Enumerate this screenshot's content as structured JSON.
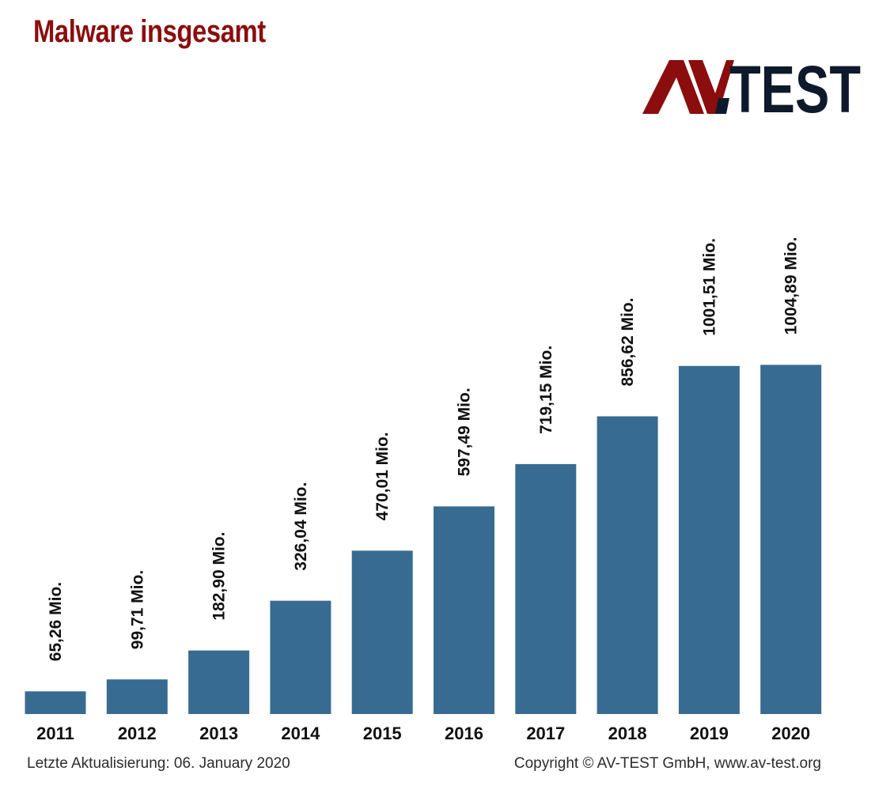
{
  "title": "Malware insgesamt",
  "logo": {
    "text": "AV-TEST",
    "colors": {
      "dark_red": "#8b0d0d",
      "navy": "#0e1a2b"
    }
  },
  "footer": {
    "updated": "Letzte Aktualisierung: 06. January 2020",
    "copyright": "Copyright © AV-TEST GmbH, www.av-test.org"
  },
  "colors": {
    "bar": "#386b91",
    "title": "#8b0d0d",
    "label": "#111111"
  },
  "chart_data": {
    "type": "bar",
    "categories": [
      "2011",
      "2012",
      "2013",
      "2014",
      "2015",
      "2016",
      "2017",
      "2018",
      "2019",
      "2020"
    ],
    "values": [
      65.26,
      99.71,
      182.9,
      326.04,
      470.01,
      597.49,
      719.15,
      856.62,
      1001.51,
      1004.89
    ],
    "value_labels": [
      "65,26 Mio.",
      "99,71 Mio.",
      "182,90 Mio.",
      "326,04 Mio.",
      "470,01 Mio.",
      "597,49 Mio.",
      "719,15 Mio.",
      "856,62 Mio.",
      "1001,51 Mio.",
      "1004,89 Mio."
    ],
    "title": "Malware insgesamt",
    "ylim": [
      0,
      1050
    ],
    "grid": false,
    "legend": "none"
  }
}
